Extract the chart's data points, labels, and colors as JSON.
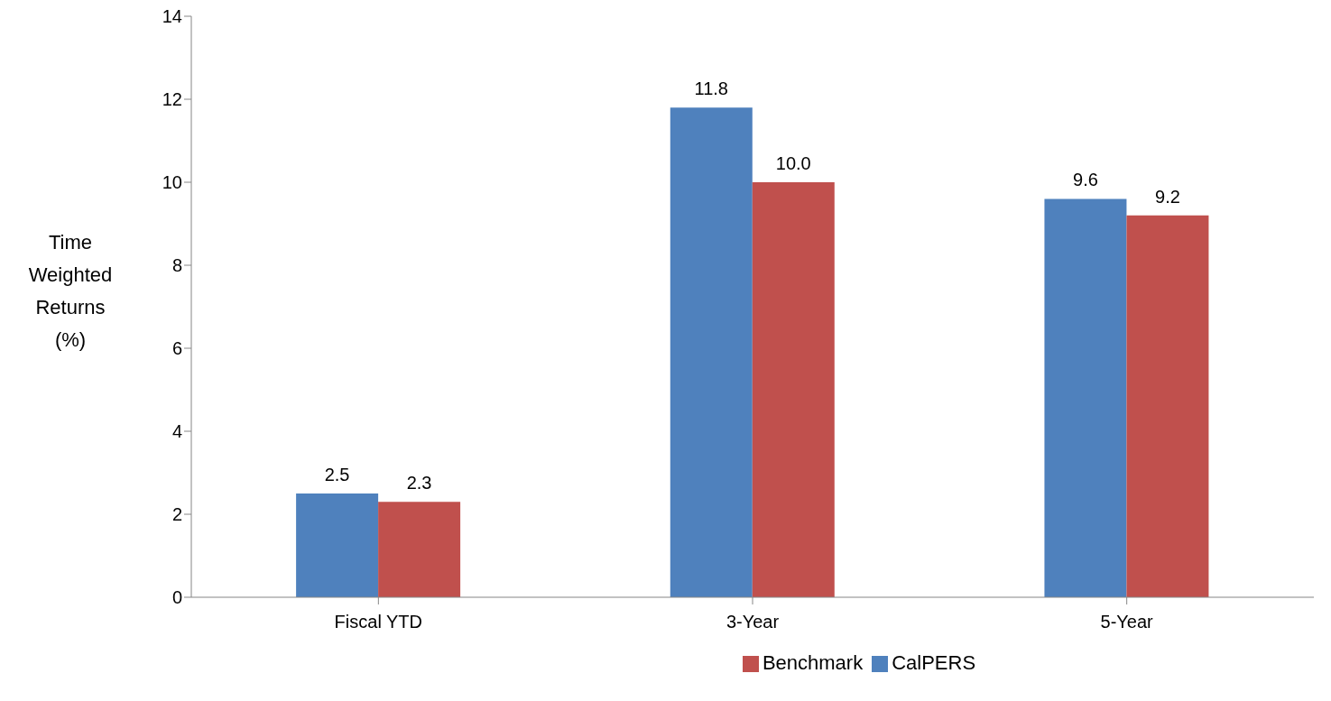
{
  "chart_data": {
    "type": "bar",
    "ylabel": "Time Weighted Returns (%)",
    "categories": [
      "Fiscal YTD",
      "3-Year",
      "5-Year"
    ],
    "series": [
      {
        "name": "CalPERS",
        "color": "#4f81bd",
        "values": [
          2.5,
          11.8,
          9.6
        ],
        "value_labels": [
          "2.5",
          "11.8",
          "9.6"
        ]
      },
      {
        "name": "Benchmark",
        "color": "#c0504d",
        "values": [
          2.3,
          10.0,
          9.2
        ],
        "value_labels": [
          "2.3",
          "10.0",
          "9.2"
        ]
      }
    ],
    "ylim": [
      0,
      14
    ],
    "yticks": [
      0,
      2,
      4,
      6,
      8,
      10,
      12,
      14
    ],
    "grid": false,
    "legend": "bottom"
  }
}
